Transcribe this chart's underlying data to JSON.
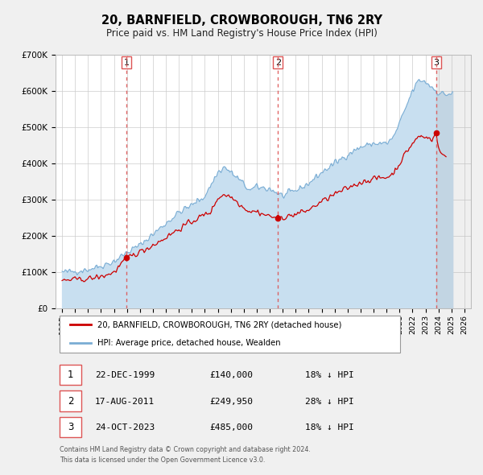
{
  "title": "20, BARNFIELD, CROWBOROUGH, TN6 2RY",
  "subtitle": "Price paid vs. HM Land Registry's House Price Index (HPI)",
  "legend_label_red": "20, BARNFIELD, CROWBOROUGH, TN6 2RY (detached house)",
  "legend_label_blue": "HPI: Average price, detached house, Wealden",
  "footer_line1": "Contains HM Land Registry data © Crown copyright and database right 2024.",
  "footer_line2": "This data is licensed under the Open Government Licence v3.0.",
  "transactions": [
    {
      "num": 1,
      "date": "22-DEC-1999",
      "price": "£140,000",
      "hpi": "18% ↓ HPI"
    },
    {
      "num": 2,
      "date": "17-AUG-2011",
      "price": "£249,950",
      "hpi": "28% ↓ HPI"
    },
    {
      "num": 3,
      "date": "24-OCT-2023",
      "price": "£485,000",
      "hpi": "18% ↓ HPI"
    }
  ],
  "transaction_dates_decimal": [
    1999.97,
    2011.63,
    2023.81
  ],
  "transaction_prices": [
    140000,
    249950,
    485000
  ],
  "color_red": "#cc0000",
  "color_blue": "#7aadd4",
  "color_blue_fill": "#c8dff0",
  "color_dashed": "#dd5555",
  "ylim": [
    0,
    700000
  ],
  "yticks": [
    0,
    100000,
    200000,
    300000,
    400000,
    500000,
    600000,
    700000
  ],
  "xlim_start": 1994.5,
  "xlim_end": 2026.5,
  "xticks": [
    1995,
    1996,
    1997,
    1998,
    1999,
    2000,
    2001,
    2002,
    2003,
    2004,
    2005,
    2006,
    2007,
    2008,
    2009,
    2010,
    2011,
    2012,
    2013,
    2014,
    2015,
    2016,
    2017,
    2018,
    2019,
    2020,
    2021,
    2022,
    2023,
    2024,
    2025,
    2026
  ],
  "background_color": "#f0f0f0",
  "plot_bg_color": "#ffffff",
  "grid_color": "#cccccc",
  "shade_after_x": 2023.81
}
